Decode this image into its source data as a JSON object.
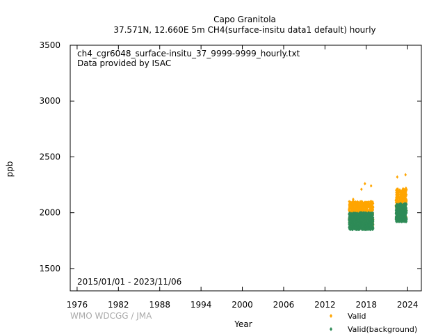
{
  "chart_data": {
    "type": "scatter",
    "title": "Capo Granitola",
    "subtitle": "37.571N, 12.660E 5m    CH4(surface-insitu data1 default) hourly",
    "file_label": "ch4_cgr6048_surface-insitu_37_9999-9999_hourly.txt",
    "provider_label": "Data provided by ISAC",
    "date_range": "2015/01/01 - 2023/11/06",
    "xlabel": "Year",
    "ylabel": "ppb",
    "credit": "WMO WDCGG / JMA",
    "xlim": [
      1975,
      2026
    ],
    "ylim": [
      1300,
      3500
    ],
    "x_ticks": [
      "1976",
      "1982",
      "1988",
      "1994",
      "2000",
      "2006",
      "2012",
      "2018",
      "2024"
    ],
    "y_ticks": [
      "1500",
      "2000",
      "2500",
      "3000",
      "3500"
    ],
    "grid": false,
    "legend_position": "bottom-right",
    "series": [
      {
        "name": "Valid",
        "color": "#ffa500",
        "marker": "diamond",
        "segments": [
          {
            "x_start": 2015.5,
            "x_end": 2019.0,
            "y_low": 1870,
            "y_high": 2100
          },
          {
            "x_start": 2022.3,
            "x_end": 2023.85,
            "y_low": 1930,
            "y_high": 2220
          }
        ],
        "outliers": [
          {
            "x": 2017.8,
            "y": 2260
          },
          {
            "x": 2018.7,
            "y": 2240
          },
          {
            "x": 2022.5,
            "y": 2320
          },
          {
            "x": 2023.7,
            "y": 2340
          },
          {
            "x": 2016.1,
            "y": 2120
          },
          {
            "x": 2017.3,
            "y": 2210
          }
        ]
      },
      {
        "name": "Valid(background)",
        "color": "#2e8b57",
        "marker": "diamond",
        "segments": [
          {
            "x_start": 2015.5,
            "x_end": 2019.0,
            "y_low": 1850,
            "y_high": 2000
          },
          {
            "x_start": 2022.3,
            "x_end": 2023.85,
            "y_low": 1920,
            "y_high": 2080
          }
        ],
        "outliers": []
      }
    ]
  }
}
